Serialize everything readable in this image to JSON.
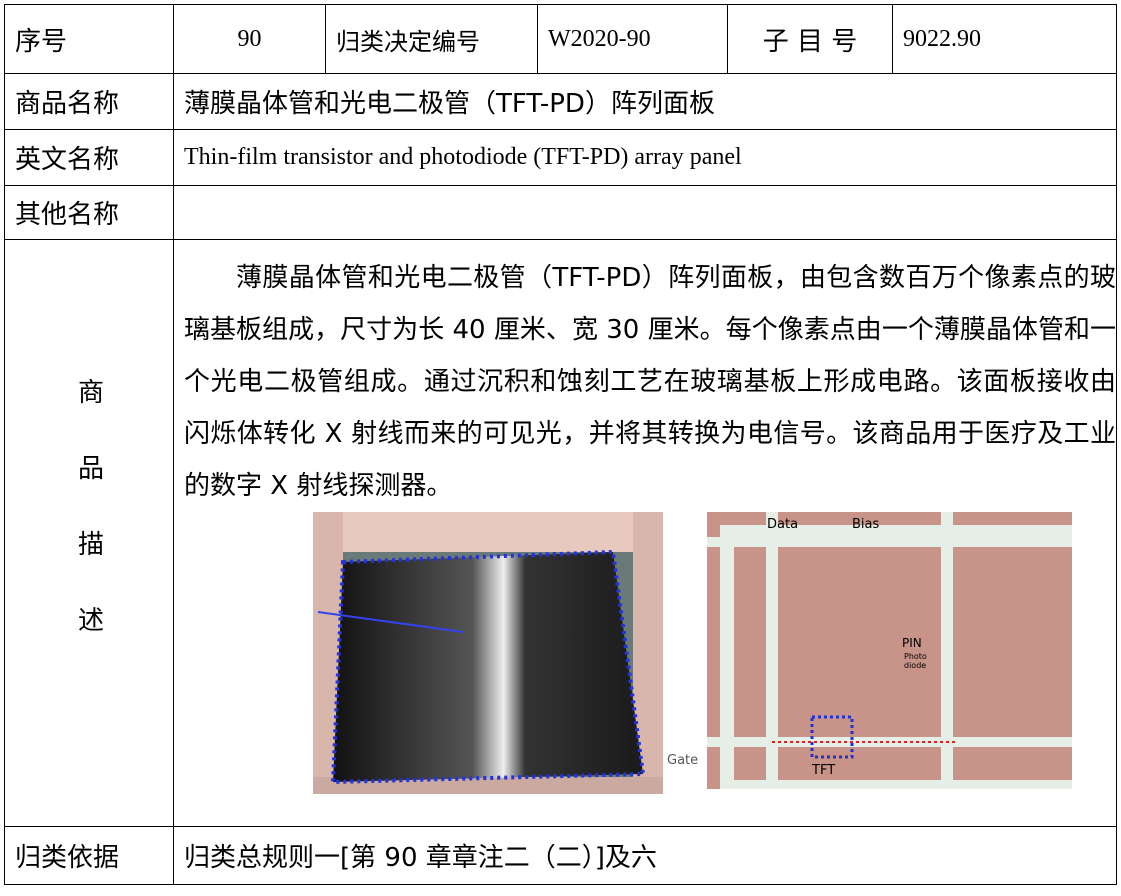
{
  "table": {
    "header": [
      "序号",
      "90",
      "归类决定编号",
      "W2020-90",
      "子 目 号",
      "9022.90"
    ],
    "rows": [
      [
        "商品名称",
        "薄膜晶体管和光电二极管（TFT-PD）阵列面板"
      ],
      [
        "英文名称",
        "Thin-film transistor and photodiode (TFT-PD) array panel"
      ],
      [
        "其他名称",
        null
      ],
      [
        "商品描述",
        "薄膜晶体管和光电二极管（TFT-PD）阵列面板，由包含数百万个像素点的玻璃基板组成，尺寸为长 40 厘米、宽 30 厘米。每个像素点由一个薄膜晶体管和一个光电二极管组成。通过沉积和蚀刻工艺在玻璃基板上形成电路。该面板接收由闪烁体转化 X 射线而来的可见光，并将其转换为电信号。该商品用于医疗及工业的数字 X 射线探测器。"
      ],
      [
        "归类依据",
        "归类总规则一[第 90 章章注二（二）]及六"
      ]
    ],
    "figure_labels": [
      "Data",
      "Bias",
      "PIN",
      "Photo",
      "diode",
      "Gate",
      "TFT"
    ]
  }
}
